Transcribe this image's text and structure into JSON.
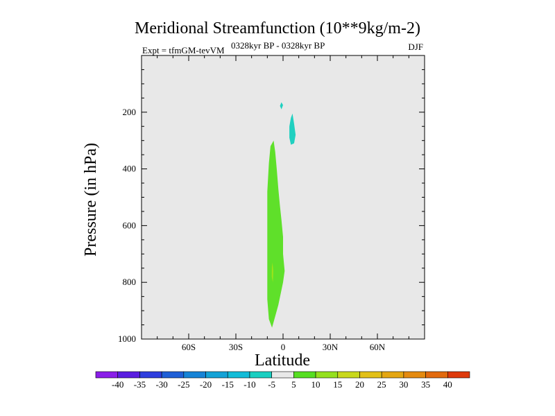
{
  "chart_data": {
    "type": "contour",
    "title": "Meridional Streamfunction (10**9kg/m-2)",
    "left_subtitle": "Expt = tfmGM-tevVM",
    "center_subtitle": "0328kyr BP - 0328kyr BP",
    "right_subtitle": "DJF",
    "xlabel": "Latitude",
    "ylabel": "Pressure (in hPa)",
    "xlim": [
      -90,
      90
    ],
    "ylim": [
      1000,
      0
    ],
    "x_ticks": [
      {
        "value": -60,
        "label": "60S"
      },
      {
        "value": -30,
        "label": "30S"
      },
      {
        "value": 0,
        "label": "0"
      },
      {
        "value": 30,
        "label": "30N"
      },
      {
        "value": 60,
        "label": "60N"
      }
    ],
    "y_ticks": [
      {
        "value": 200,
        "label": "200"
      },
      {
        "value": 400,
        "label": "400"
      },
      {
        "value": 600,
        "label": "600"
      },
      {
        "value": 800,
        "label": "800"
      },
      {
        "value": 1000,
        "label": "1000"
      }
    ],
    "background_fill": "#e8e8e8",
    "regions": [
      {
        "name": "positive-5-10",
        "level": "5 to 10",
        "color": "#5fe02a",
        "points": [
          [
            -6,
            300
          ],
          [
            -5,
            340
          ],
          [
            -4,
            400
          ],
          [
            -3,
            470
          ],
          [
            -2,
            530
          ],
          [
            -1,
            580
          ],
          [
            0,
            640
          ],
          [
            0,
            700
          ],
          [
            1,
            760
          ],
          [
            0,
            800
          ],
          [
            -3,
            880
          ],
          [
            -6,
            940
          ],
          [
            -7,
            960
          ],
          [
            -9,
            930
          ],
          [
            -10,
            860
          ],
          [
            -10,
            780
          ],
          [
            -10,
            700
          ],
          [
            -10,
            600
          ],
          [
            -10,
            480
          ],
          [
            -9,
            380
          ],
          [
            -8,
            320
          ],
          [
            -6,
            300
          ]
        ]
      },
      {
        "name": "positive-10-15",
        "level": "10 to 15",
        "color": "#9fe31a",
        "points": [
          [
            -6.7,
            730
          ],
          [
            -6.2,
            760
          ],
          [
            -6.5,
            800
          ],
          [
            -7.2,
            780
          ],
          [
            -7.1,
            745
          ],
          [
            -6.7,
            730
          ]
        ]
      },
      {
        "name": "negative-10-5-upper",
        "level": "-10 to -5",
        "color": "#20d0c0",
        "points": [
          [
            6,
            205
          ],
          [
            7,
            240
          ],
          [
            8,
            280
          ],
          [
            7,
            310
          ],
          [
            5,
            315
          ],
          [
            4,
            290
          ],
          [
            4,
            250
          ],
          [
            5,
            220
          ],
          [
            6,
            205
          ]
        ]
      },
      {
        "name": "negative-10-5-small",
        "level": "-10 to -5",
        "color": "#20d0c0",
        "points": [
          [
            -1,
            165
          ],
          [
            0,
            175
          ],
          [
            -1,
            190
          ],
          [
            -2,
            178
          ],
          [
            -1,
            165
          ]
        ]
      }
    ],
    "colorbar": {
      "labels": [
        "-40",
        "-35",
        "-30",
        "-25",
        "-20",
        "-15",
        "-10",
        "-5",
        "5",
        "10",
        "15",
        "20",
        "25",
        "30",
        "35",
        "40"
      ],
      "colors": [
        "#8a1ee8",
        "#5a1de0",
        "#2f3ede",
        "#1f5fd6",
        "#1683d6",
        "#14a2d6",
        "#13bcd8",
        "#1acfc1",
        "#e8e8e8",
        "#56de22",
        "#94e01e",
        "#c8d81c",
        "#e2c018",
        "#e4a612",
        "#e48a10",
        "#e26a0e",
        "#de3a0c"
      ]
    }
  }
}
